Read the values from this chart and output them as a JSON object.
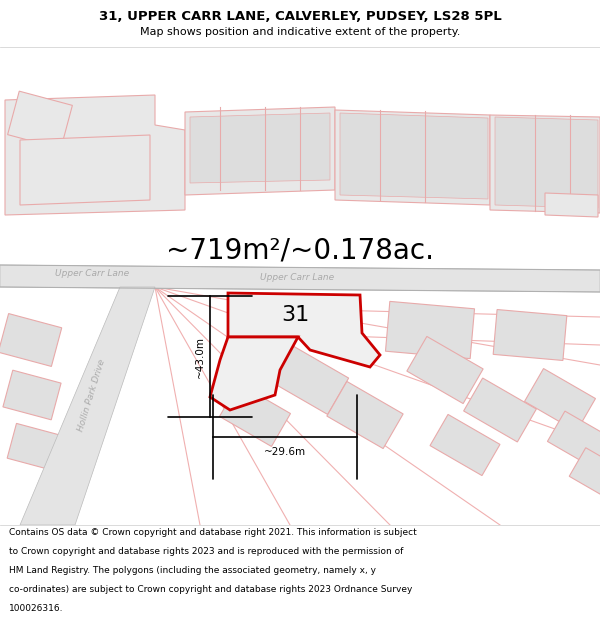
{
  "title_line1": "31, UPPER CARR LANE, CALVERLEY, PUDSEY, LS28 5PL",
  "title_line2": "Map shows position and indicative extent of the property.",
  "area_text": "~719m²/~0.178ac.",
  "label_31": "31",
  "dim_vertical": "~43.0m",
  "dim_horizontal": "~29.6m",
  "road_label_left": "Upper Carr Lane",
  "road_label_right": "Upper Carr Lane",
  "road_label_hollin": "Hollin Park Drive",
  "footer_lines": [
    "Contains OS data © Crown copyright and database right 2021. This information is subject",
    "to Crown copyright and database rights 2023 and is reproduced with the permission of",
    "HM Land Registry. The polygons (including the associated geometry, namely x, y",
    "co-ordinates) are subject to Crown copyright and database rights 2023 Ordnance Survey",
    "100026316."
  ],
  "bg_white": "#ffffff",
  "map_bg": "#f8f8f8",
  "road_fill": "#e4e4e4",
  "road_edge": "#bbbbbb",
  "building_fill": "#e8e8e8",
  "building_edge": "#e8aaaa",
  "plot_fill": "#f0f0f0",
  "plot_edge": "#cc0000",
  "dim_color": "#000000",
  "road_text_color": "#aaaaaa",
  "title_fs": 9.5,
  "sub_fs": 8.0,
  "area_fs": 20,
  "label_fs": 16,
  "road_fs": 6.5,
  "dim_fs": 7.5,
  "footer_fs": 6.5
}
